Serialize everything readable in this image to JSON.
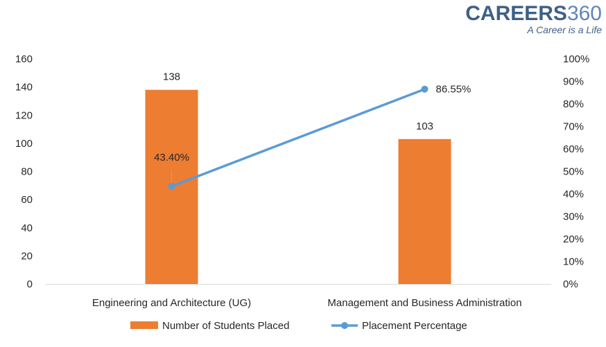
{
  "logo": {
    "brand_part1": "CAREERS",
    "brand_part2": "360",
    "tagline": "A Career is a Life"
  },
  "colors": {
    "bar": "#ed7d31",
    "line": "#5b9bd5",
    "axis": "#d9d9d9",
    "text": "#262626"
  },
  "chart_data": {
    "type": "bar",
    "categories": [
      "Engineering and Architecture (UG)",
      "Management and Business Administration"
    ],
    "series": [
      {
        "name": "Number of Students Placed",
        "type": "bar",
        "axis": "left",
        "values": [
          138,
          103
        ],
        "labels": [
          "138",
          "103"
        ]
      },
      {
        "name": "Placement Percentage",
        "type": "line",
        "axis": "right",
        "values": [
          43.4,
          86.55
        ],
        "labels": [
          "43.40%",
          "86.55%"
        ]
      }
    ],
    "y_left": {
      "min": 0,
      "max": 160,
      "step": 20,
      "ticks": [
        "0",
        "20",
        "40",
        "60",
        "80",
        "100",
        "120",
        "140",
        "160"
      ]
    },
    "y_right": {
      "min": 0,
      "max": 100,
      "step": 10,
      "ticks": [
        "0%",
        "10%",
        "20%",
        "30%",
        "40%",
        "50%",
        "60%",
        "70%",
        "80%",
        "90%",
        "100%"
      ]
    },
    "grid": false,
    "legend_position": "bottom"
  }
}
